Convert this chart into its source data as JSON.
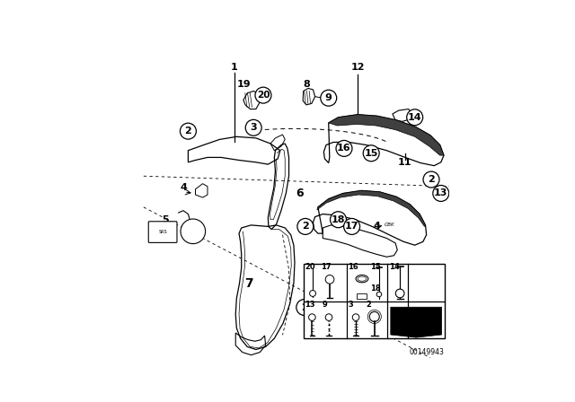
{
  "bg_color": "#ffffff",
  "part_number": "00149943",
  "fig_width": 6.4,
  "fig_height": 4.48,
  "dpi": 100,
  "line_color": "#000000",
  "callout_r": 0.028
}
